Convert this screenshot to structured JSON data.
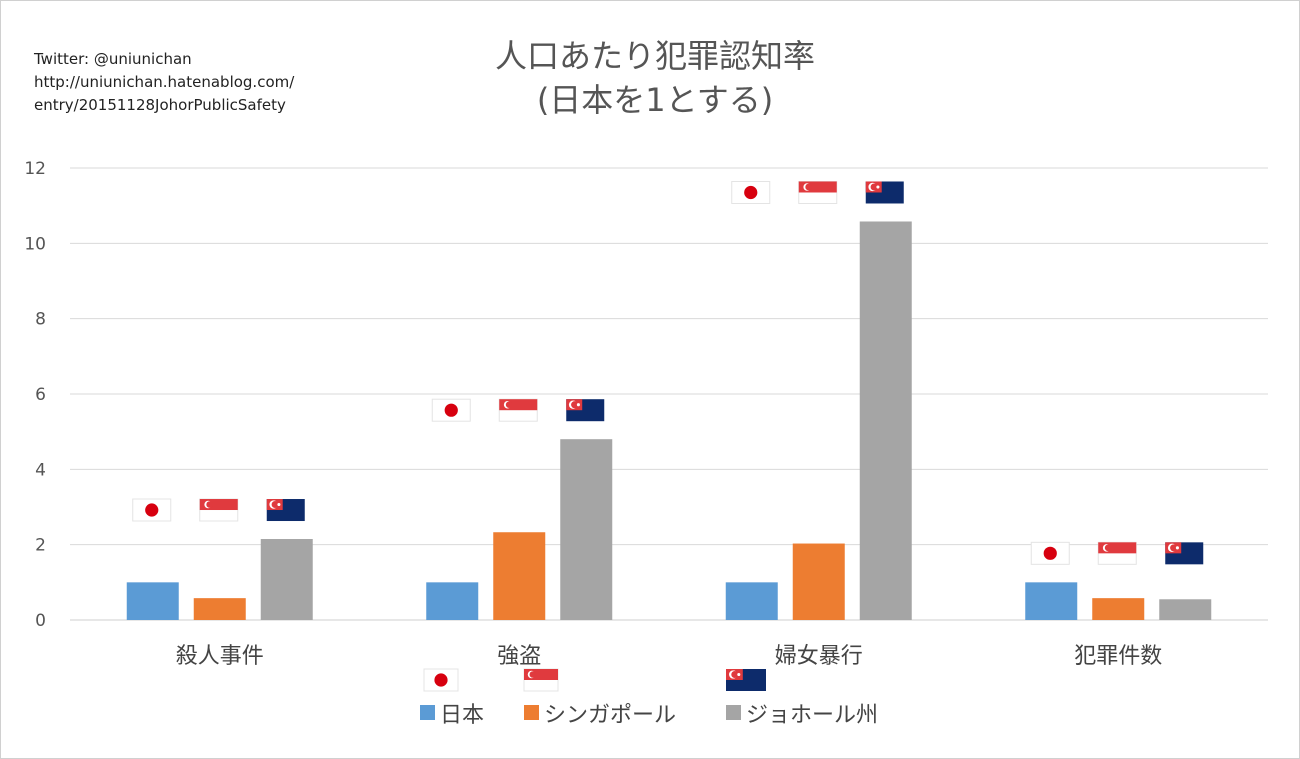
{
  "credit": {
    "line1": "Twitter: @uniunichan",
    "line2": "http://uniunichan.hatenablog.com/",
    "line3": "entry/20151128JohorPublicSafety"
  },
  "chart_data": {
    "type": "bar",
    "title": "人口あたり犯罪認知率",
    "subtitle": "(日本を1とする)",
    "categories": [
      "殺人事件",
      "強盗",
      "婦女暴行",
      "犯罪件数"
    ],
    "series": [
      {
        "name": "日本",
        "values": [
          1.0,
          1.0,
          1.0,
          1.0
        ],
        "color": "#5b9bd5",
        "flag": "japan-flag"
      },
      {
        "name": "シンガポール",
        "values": [
          0.58,
          2.33,
          2.03,
          0.58
        ],
        "color": "#ed7d31",
        "flag": "singapore-flag"
      },
      {
        "name": "ジョホール州",
        "values": [
          2.15,
          4.8,
          10.58,
          0.55
        ],
        "color": "#a5a5a5",
        "flag": "johor-flag"
      }
    ],
    "ylim": [
      0,
      12
    ],
    "yticks": [
      "0",
      "2",
      "4",
      "6",
      "8",
      "10",
      "12"
    ],
    "grid": true,
    "legend_position": "bottom"
  }
}
